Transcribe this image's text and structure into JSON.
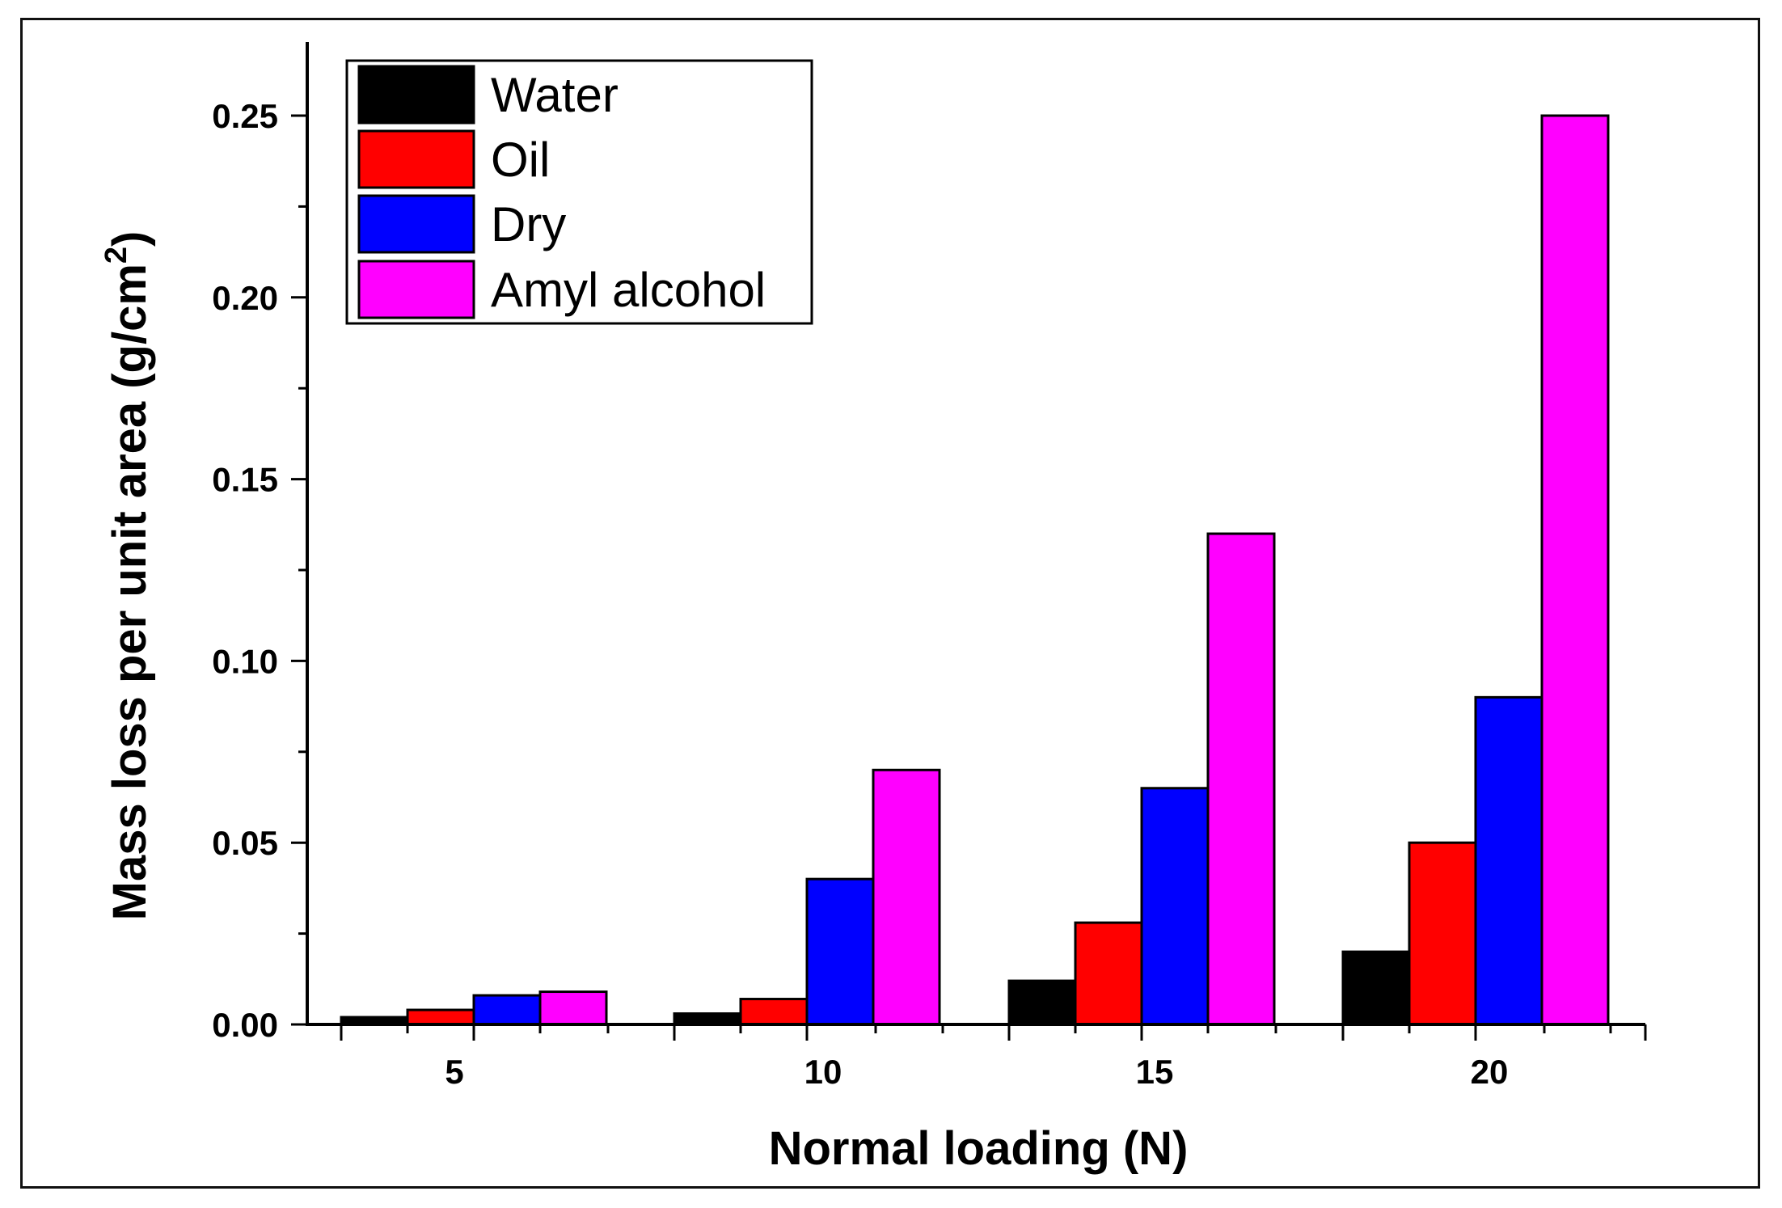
{
  "chart_data": {
    "type": "bar",
    "categories": [
      "5",
      "10",
      "15",
      "20"
    ],
    "series": [
      {
        "name": "Water",
        "color": "#000000",
        "values": [
          0.002,
          0.003,
          0.012,
          0.02
        ]
      },
      {
        "name": "Oil",
        "color": "#ff0000",
        "values": [
          0.004,
          0.007,
          0.028,
          0.05
        ]
      },
      {
        "name": "Dry",
        "color": "#0000ff",
        "values": [
          0.008,
          0.04,
          0.065,
          0.09
        ]
      },
      {
        "name": "Amyl alcohol",
        "color": "#ff00ff",
        "values": [
          0.009,
          0.07,
          0.135,
          0.25
        ]
      }
    ],
    "xlabel": "Normal loading (N)",
    "ylabel_main": "Mass loss per unit area (g/cm",
    "ylabel_sup": "2",
    "ylabel_close": ")",
    "ylim": [
      0,
      0.27
    ],
    "yticks": [
      "0.00",
      "0.05",
      "0.10",
      "0.15",
      "0.20",
      "0.25"
    ],
    "ytick_values": [
      0,
      0.05,
      0.1,
      0.15,
      0.2,
      0.25
    ],
    "grid": false,
    "legend_position": "top-left"
  }
}
